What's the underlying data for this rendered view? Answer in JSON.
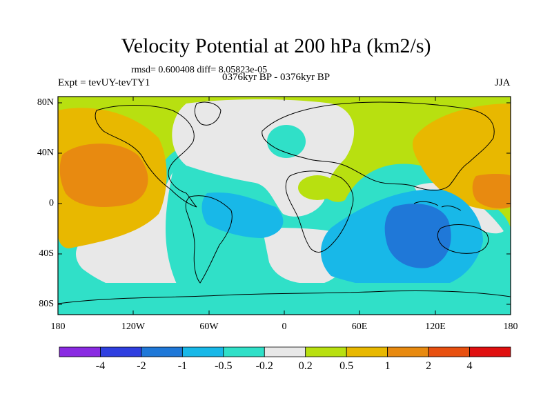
{
  "title": "Velocity Potential at 200 hPa (km2/s)",
  "stats_line": "rmsd= 0.600408 diff= 8.05823e-05",
  "experiment": "Expt = tevUY-tevTY1",
  "period": "0376kyr BP - 0376kyr BP",
  "season": "JJA",
  "lat_labels": [
    "80N",
    "40N",
    "0",
    "40S",
    "80S"
  ],
  "lon_labels": [
    "180",
    "120W",
    "60W",
    "0",
    "60E",
    "120E",
    "180"
  ],
  "colorbar": {
    "labels": [
      "-4",
      "-2",
      "-1",
      "-0.5",
      "-0.2",
      "0.2",
      "0.5",
      "1",
      "2",
      "4"
    ],
    "colors": [
      "#8a2be2",
      "#2f3fe0",
      "#1f78d8",
      "#18b8e8",
      "#30e0c8",
      "#e8e8e8",
      "#b8e010",
      "#e8b800",
      "#e88a10",
      "#e85010",
      "#e01010"
    ]
  },
  "palette": {
    "ocean_cyan": "#30e0c8",
    "light_blue": "#18b8e8",
    "mid_blue": "#1f78d8",
    "neutral": "#e8e8e8",
    "lime": "#b8e010",
    "amber": "#e8b800",
    "orange": "#e88a10",
    "red_orange": "#e85010"
  }
}
